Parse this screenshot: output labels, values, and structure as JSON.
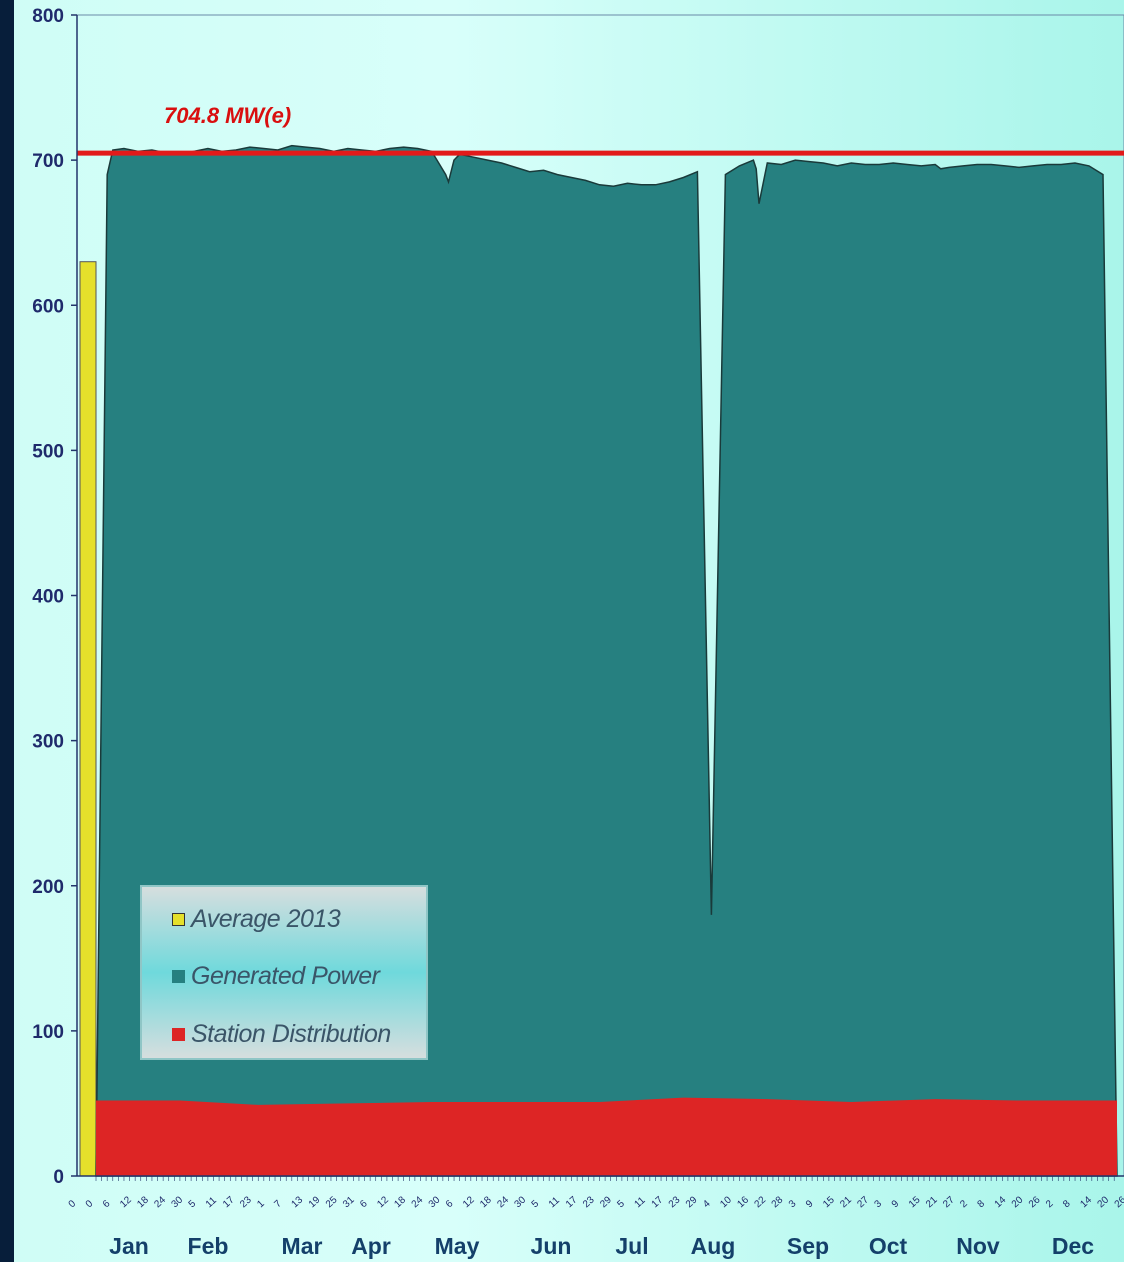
{
  "chart_data": {
    "type": "area",
    "annotation": "704.8 MW(e)",
    "reference_line": 704.8,
    "ylim": [
      0,
      800
    ],
    "yticks": [
      0,
      100,
      200,
      300,
      400,
      500,
      600,
      700,
      800
    ],
    "months": [
      "Jan",
      "Feb",
      "Mar",
      "Apr",
      "May",
      "Jun",
      "Jul",
      "Aug",
      "Sep",
      "Oct",
      "Nov",
      "Dec"
    ],
    "day_ticks": [
      "0",
      "0",
      "6",
      "12",
      "18",
      "24",
      "30",
      "5",
      "11",
      "17",
      "23",
      "1",
      "7",
      "13",
      "19",
      "25",
      "31",
      "6",
      "12",
      "18",
      "24",
      "30",
      "6",
      "12",
      "18",
      "24",
      "30",
      "5",
      "11",
      "17",
      "23",
      "29",
      "5",
      "11",
      "17",
      "23",
      "29",
      "4",
      "10",
      "16",
      "22",
      "28",
      "3",
      "9",
      "15",
      "21",
      "27",
      "3",
      "9",
      "15",
      "21",
      "27",
      "2",
      "8",
      "14",
      "20",
      "26",
      "2",
      "8",
      "14",
      "20",
      "26"
    ],
    "legend": [
      {
        "label": "Average 2013",
        "color": "#e5e02b"
      },
      {
        "label": "Generated Power",
        "color": "#268080"
      },
      {
        "label": "Station  Distribution",
        "color": "#dd2525"
      }
    ],
    "series": [
      {
        "name": "Average 2013",
        "values": [
          630
        ]
      },
      {
        "name": "Generated Power",
        "x": [
          0,
          4,
          6,
          10,
          15,
          20,
          25,
          30,
          35,
          40,
          45,
          50,
          55,
          60,
          65,
          70,
          75,
          80,
          85,
          90,
          95,
          100,
          105,
          110,
          115,
          120,
          125,
          126,
          128,
          130,
          135,
          140,
          145,
          150,
          155,
          160,
          165,
          170,
          175,
          180,
          185,
          190,
          195,
          200,
          205,
          210,
          215,
          220,
          225,
          230,
          235,
          236,
          237,
          240,
          245,
          250,
          255,
          260,
          265,
          270,
          275,
          280,
          285,
          290,
          295,
          300,
          302,
          305,
          310,
          315,
          320,
          325,
          330,
          335,
          340,
          345,
          350,
          355,
          360,
          365
        ],
        "values": [
          0,
          690,
          707,
          708,
          706,
          707,
          705,
          704,
          706,
          708,
          706,
          707,
          709,
          708,
          707,
          710,
          709,
          708,
          706,
          708,
          707,
          706,
          708,
          709,
          708,
          706,
          690,
          685,
          700,
          704,
          702,
          700,
          698,
          695,
          692,
          693,
          690,
          688,
          686,
          683,
          682,
          684,
          683,
          683,
          685,
          688,
          692,
          180,
          690,
          696,
          700,
          694,
          670,
          698,
          697,
          700,
          699,
          698,
          696,
          698,
          697,
          697,
          698,
          697,
          696,
          697,
          694,
          695,
          696,
          697,
          697,
          696,
          695,
          696,
          697,
          697,
          698,
          696,
          690,
          0
        ]
      },
      {
        "name": "Station  Distribution",
        "x": [
          0,
          30,
          58,
          90,
          120,
          150,
          180,
          210,
          240,
          270,
          300,
          330,
          365
        ],
        "values": [
          52,
          52,
          49,
          50,
          51,
          51,
          51,
          54,
          53,
          51,
          53,
          52,
          52
        ]
      }
    ]
  }
}
